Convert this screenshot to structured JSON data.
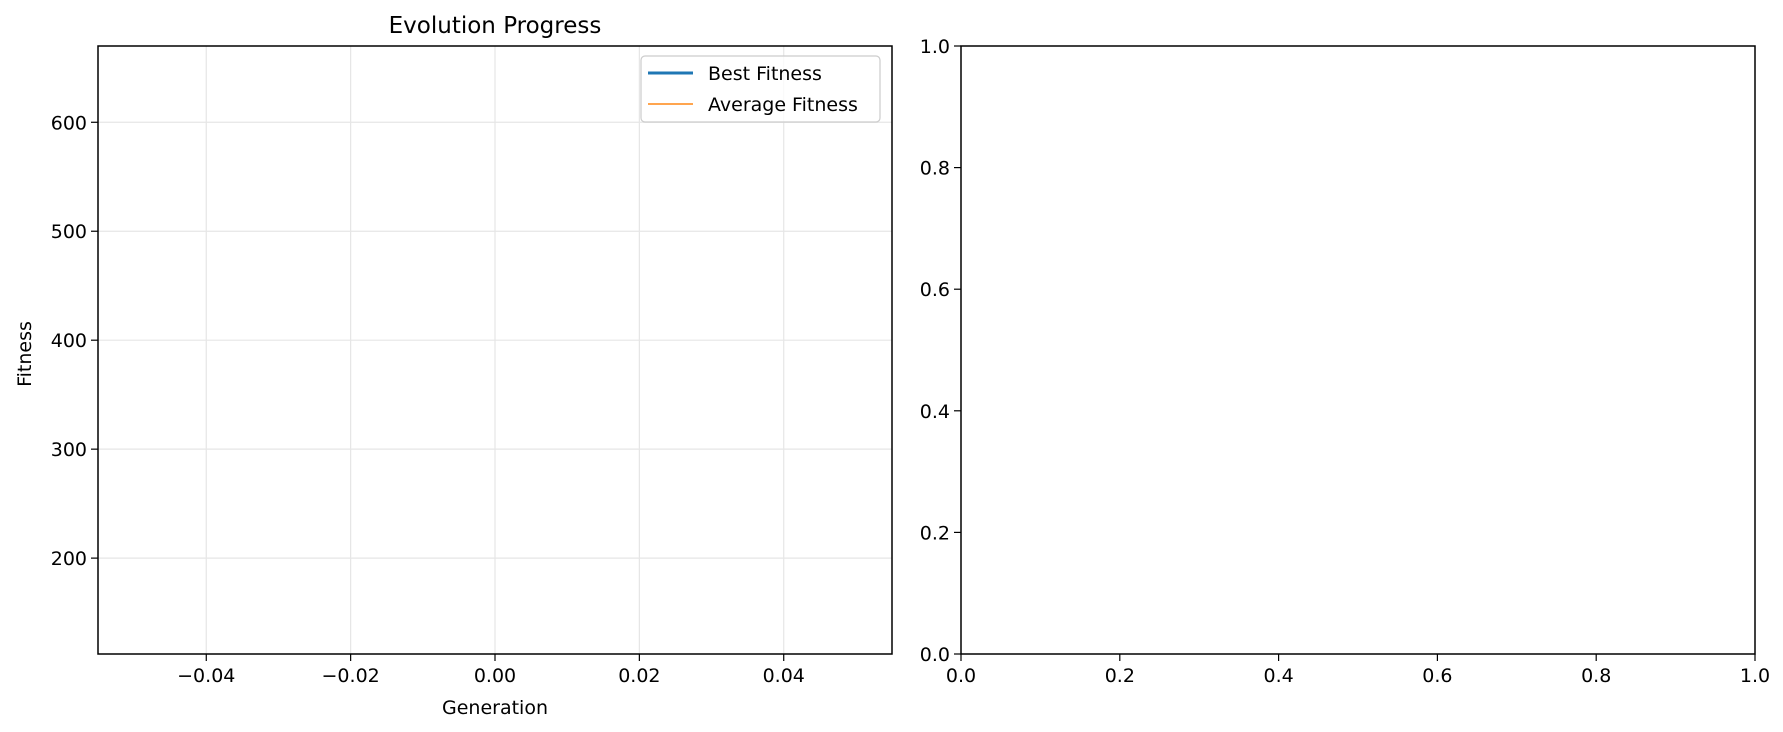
{
  "chart_data": [
    {
      "type": "line",
      "title": "Evolution Progress",
      "xlabel": "Generation",
      "ylabel": "Fitness",
      "xlim": [
        -0.055,
        0.055
      ],
      "ylim": [
        112,
        670
      ],
      "xticks": [
        -0.04,
        -0.02,
        0.0,
        0.02,
        0.04
      ],
      "xtick_labels": [
        "−0.04",
        "−0.02",
        "0.00",
        "0.02",
        "0.04"
      ],
      "yticks": [
        200,
        300,
        400,
        500,
        600
      ],
      "ytick_labels": [
        "200",
        "300",
        "400",
        "500",
        "600"
      ],
      "grid": true,
      "legend_position": "top-right",
      "series": [
        {
          "name": "Best Fitness",
          "color": "#1f77b4",
          "x": [],
          "values": []
        },
        {
          "name": "Average Fitness",
          "color": "#ffa54f",
          "x": [],
          "values": []
        }
      ]
    },
    {
      "type": "line",
      "title": "",
      "xlabel": "",
      "ylabel": "",
      "xlim": [
        0,
        1
      ],
      "ylim": [
        0,
        1
      ],
      "xticks": [
        0.0,
        0.2,
        0.4,
        0.6,
        0.8,
        1.0
      ],
      "xtick_labels": [
        "0.0",
        "0.2",
        "0.4",
        "0.6",
        "0.8",
        "1.0"
      ],
      "yticks": [
        0.0,
        0.2,
        0.4,
        0.6,
        0.8,
        1.0
      ],
      "ytick_labels": [
        "0.0",
        "0.2",
        "0.4",
        "0.6",
        "0.8",
        "1.0"
      ],
      "grid": false,
      "series": []
    }
  ]
}
